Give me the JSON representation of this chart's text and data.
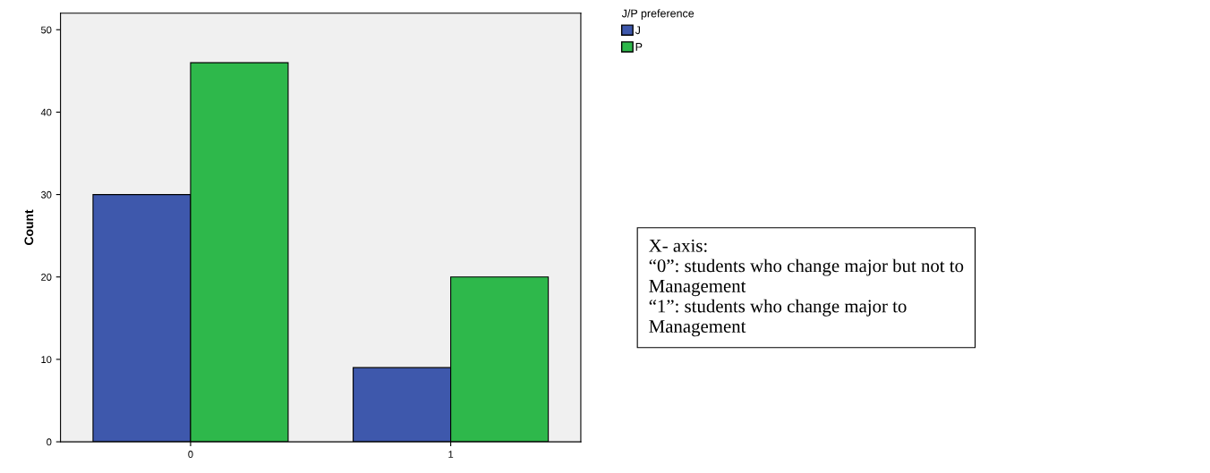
{
  "chart_data": {
    "type": "bar",
    "ylabel": "Count",
    "legend_title": "J/P preference",
    "categories": [
      "0",
      "1"
    ],
    "series": [
      {
        "name": "J",
        "color": "#3e58ac",
        "values": [
          30,
          9
        ]
      },
      {
        "name": "P",
        "color": "#2eb84b",
        "values": [
          46,
          20
        ]
      }
    ],
    "ylim": [
      0,
      52
    ],
    "yticks": [
      0,
      10,
      20,
      30,
      40,
      50
    ],
    "grid": false,
    "legend": "top right",
    "annotations": [
      "X- axis:\n“0”: students who change major but not to\nManagement\n“1”: students who change major to\nManagement"
    ]
  }
}
